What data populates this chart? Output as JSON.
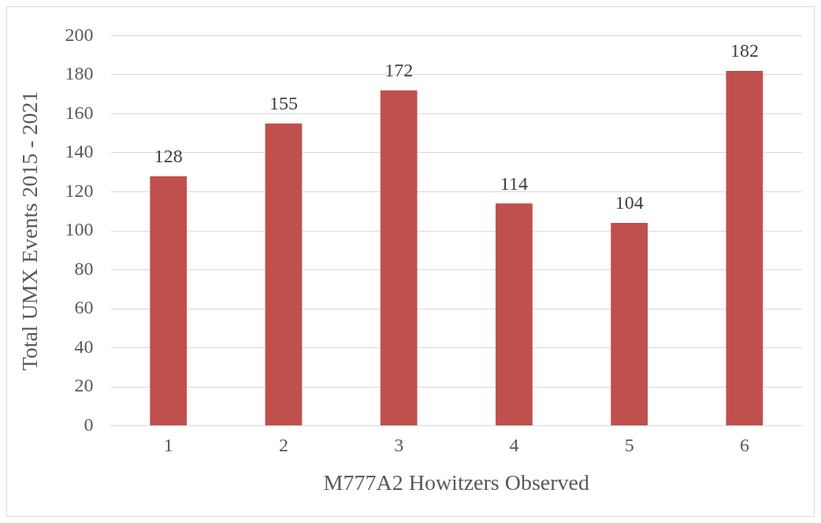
{
  "chart_data": {
    "type": "bar",
    "xlabel": "M777A2 Howitzers Observed",
    "ylabel": "Total UMX Events 2015 - 2021",
    "categories": [
      "1",
      "2",
      "3",
      "4",
      "5",
      "6"
    ],
    "values": [
      128,
      155,
      172,
      114,
      104,
      182
    ],
    "color": "#c0504d",
    "ylim": [
      0,
      200
    ],
    "yticks": [
      0,
      20,
      40,
      60,
      80,
      100,
      120,
      140,
      160,
      180,
      200
    ],
    "grid": "y",
    "data_labels": true,
    "legend": false
  }
}
